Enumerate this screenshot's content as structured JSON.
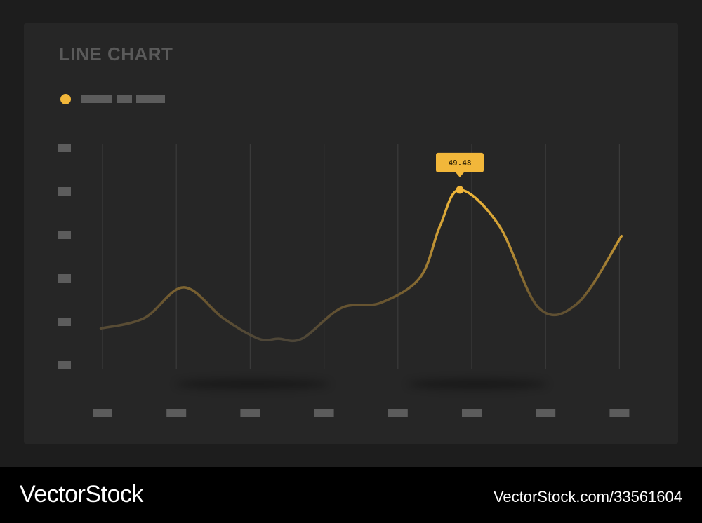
{
  "header": {
    "title": "LINE CHART"
  },
  "colors": {
    "accent": "#f2b73a",
    "dim_line": "#3f3f3f",
    "grid": "#3a3a3a",
    "placeholder": "#5c5c5c",
    "card": "#262626",
    "background": "#1d1d1d"
  },
  "chart_data": {
    "type": "line",
    "title": "LINE CHART",
    "x": [
      0.9,
      2,
      3,
      4,
      4.9,
      5.4,
      6,
      7,
      8,
      9,
      9.5,
      10,
      11,
      12,
      13,
      14.1
    ],
    "y": [
      4,
      5,
      8,
      5,
      3,
      3,
      3,
      6,
      6.5,
      9,
      14,
      17.5,
      14,
      6,
      6.5,
      13
    ],
    "series": [
      {
        "values": [
          4,
          5,
          8,
          5,
          3,
          3,
          3,
          6,
          6.5,
          9,
          14,
          17.5,
          14,
          6,
          6.5,
          13
        ]
      }
    ],
    "xlim": [
      0,
      15
    ],
    "ylim": [
      0,
      22
    ],
    "grid": true,
    "x_gridlines": 8,
    "y_ticks": 6,
    "highlight": {
      "label": "49.48",
      "x": 10,
      "y": 17.5
    }
  },
  "footer": {
    "brand": "VectorStock",
    "stock_id": "VectorStock.com/33561604"
  }
}
